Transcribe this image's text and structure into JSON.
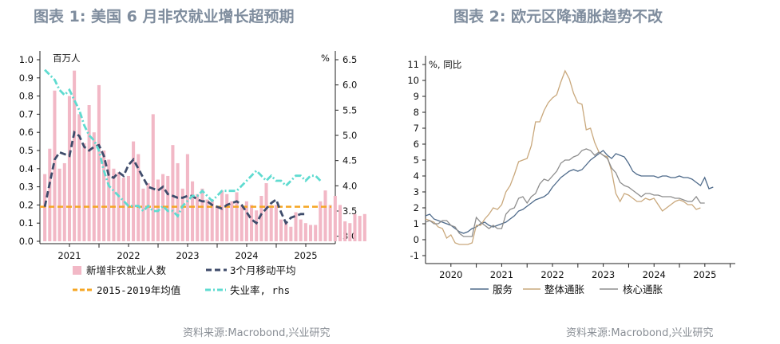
{
  "left_panel": {
    "title": "图表 1:  美国 6 月非农就业增长超预期",
    "source": "资料来源:Macrobond,兴业研究"
  },
  "right_panel": {
    "title": "图表 2:  欧元区降通胀趋势不改",
    "source": "资料来源:Macrobond,兴业研究"
  },
  "colors": {
    "title": "#7f8d9e",
    "bars": "#f2b8c6",
    "ma3": "#3f4c6b",
    "avg": "#f5a623",
    "unemp": "#5fdbd0",
    "services": "#4e6a8a",
    "headline": "#c9a87c",
    "core": "#8d8d8d"
  },
  "chart_data": [
    {
      "type": "bar",
      "left_unit": "百万人",
      "right_unit": "%",
      "ylim": [
        0,
        1.0
      ],
      "yticks": [
        "0.0",
        "0.1",
        "0.2",
        "0.3",
        "0.4",
        "0.5",
        "0.6",
        "0.7",
        "0.8",
        "0.9",
        "1.0"
      ],
      "y2lim": [
        2.9,
        6.5
      ],
      "y2ticks": [
        "3.0",
        "3.5",
        "4.0",
        "4.5",
        "5.0",
        "5.5",
        "6.0",
        "6.5"
      ],
      "x_range": [
        2020.5,
        2025.5
      ],
      "xticks": [
        "2021",
        "2022",
        "2023",
        "2024",
        "2025"
      ],
      "start": 2020.583,
      "step": 0.0833,
      "series": [
        {
          "name": "新增非农就业人数",
          "kind": "bar",
          "values": [
            0.37,
            0.51,
            0.83,
            0.4,
            0.43,
            0.8,
            0.94,
            0.7,
            0.54,
            0.75,
            0.6,
            0.86,
            0.5,
            0.45,
            0.4,
            0.38,
            0.35,
            0.36,
            0.55,
            0.48,
            0.29,
            0.32,
            0.7,
            0.34,
            0.37,
            0.36,
            0.53,
            0.43,
            0.29,
            0.48,
            0.33,
            0.26,
            0.29,
            0.23,
            0.23,
            0.19,
            0.28,
            0.26,
            0.22,
            0.27,
            0.2,
            0.22,
            0.2,
            0.17,
            0.25,
            0.32,
            0.2,
            0.2,
            0.12,
            0.11,
            0.08,
            0.16,
            0.12,
            0.1,
            0.09,
            0.09,
            0.22,
            0.28,
            0.2,
            0.25,
            0.2,
            0.11,
            0.1,
            0.15,
            0.14,
            0.15
          ]
        },
        {
          "name": "3个月移动平均",
          "kind": "line",
          "axis": "left",
          "values": [
            0.19,
            0.32,
            0.45,
            0.49,
            0.48,
            0.47,
            0.6,
            0.58,
            0.52,
            0.5,
            0.52,
            0.53,
            0.47,
            0.36,
            0.35,
            0.38,
            0.36,
            0.42,
            0.45,
            0.4,
            0.35,
            0.3,
            0.29,
            0.28,
            0.3,
            0.26,
            0.25,
            0.24,
            0.24,
            0.25,
            0.25,
            0.23,
            0.22,
            0.22,
            0.2,
            0.19,
            0.18,
            0.2,
            0.21,
            0.22,
            0.2,
            0.16,
            0.12,
            0.1,
            0.15,
            0.18,
            0.21,
            0.23,
            0.16,
            0.1,
            0.13,
            0.14,
            0.15,
            0.15
          ]
        },
        {
          "name": "2015-2019年均值",
          "kind": "hline",
          "axis": "left",
          "value": 0.19
        },
        {
          "name": "失业率, rhs",
          "kind": "line",
          "axis": "right",
          "values": [
            6.3,
            6.2,
            6.1,
            5.9,
            5.8,
            5.9,
            5.7,
            5.5,
            5.2,
            5.0,
            4.9,
            4.7,
            4.3,
            4.0,
            3.9,
            3.8,
            3.7,
            3.6,
            3.6,
            3.6,
            3.5,
            3.6,
            3.5,
            3.5,
            3.6,
            3.5,
            3.5,
            3.4,
            3.6,
            3.7,
            3.8,
            3.8,
            3.9,
            3.8,
            3.7,
            3.8,
            3.9,
            3.9,
            3.9,
            3.9,
            4.0,
            4.1,
            4.2,
            4.3,
            4.2,
            4.1,
            4.2,
            4.1,
            4.1,
            4.0,
            4.1,
            4.2,
            4.2,
            4.1,
            4.2,
            4.2,
            4.1
          ]
        }
      ],
      "legend": [
        "新增非农就业人数",
        "3个月移动平均",
        "2015-2019年均值",
        "失业率, rhs"
      ]
    },
    {
      "type": "line",
      "y_unit": "%, 同比",
      "ylim": [
        -1,
        11
      ],
      "yticks": [
        "-1",
        "0",
        "1",
        "2",
        "3",
        "4",
        "5",
        "6",
        "7",
        "8",
        "9",
        "10",
        "11"
      ],
      "x_range": [
        2019.5,
        2025.6
      ],
      "xticks": [
        "2020",
        "2021",
        "2022",
        "2023",
        "2024",
        "2025"
      ],
      "start": 2019.5,
      "step": 0.0833,
      "series": [
        {
          "name": "服务",
          "values": [
            1.5,
            1.6,
            1.3,
            1.2,
            1.1,
            1.0,
            0.9,
            0.7,
            0.5,
            0.4,
            0.5,
            0.7,
            0.8,
            1.0,
            1.1,
            0.9,
            0.8,
            0.9,
            1.0,
            1.1,
            1.3,
            1.5,
            1.8,
            1.9,
            2.1,
            2.3,
            2.5,
            2.6,
            2.7,
            2.9,
            3.3,
            3.6,
            3.9,
            4.1,
            4.3,
            4.4,
            4.3,
            4.4,
            4.7,
            5.0,
            5.2,
            5.4,
            5.6,
            5.3,
            5.1,
            5.4,
            5.3,
            5.2,
            4.8,
            4.3,
            4.1,
            4.0,
            4.0,
            4.0,
            4.0,
            3.9,
            4.0,
            4.0,
            3.9,
            3.9,
            4.0,
            3.9,
            3.9,
            3.8,
            3.6,
            3.4,
            3.9,
            3.2,
            3.3
          ]
        },
        {
          "name": "整体通胀",
          "values": [
            1.3,
            1.2,
            1.1,
            0.8,
            0.7,
            0.1,
            0.3,
            -0.2,
            -0.3,
            -0.3,
            -0.3,
            -0.2,
            0.9,
            0.9,
            1.3,
            1.6,
            2.0,
            1.9,
            2.2,
            3.0,
            3.4,
            4.1,
            4.9,
            5.0,
            5.1,
            5.9,
            7.4,
            7.4,
            8.1,
            8.6,
            8.9,
            9.1,
            9.9,
            10.6,
            10.1,
            9.2,
            8.6,
            8.5,
            6.9,
            7.0,
            6.1,
            5.5,
            5.3,
            5.2,
            4.3,
            2.9,
            2.4,
            2.9,
            2.8,
            2.6,
            2.4,
            2.4,
            2.6,
            2.5,
            2.6,
            2.2,
            1.8,
            2.0,
            2.2,
            2.4,
            2.5,
            2.4,
            2.2,
            2.2,
            1.9,
            2.0
          ]
        },
        {
          "name": "核心通胀",
          "values": [
            1.1,
            1.2,
            1.0,
            1.0,
            1.2,
            1.2,
            0.9,
            0.8,
            0.4,
            0.2,
            0.2,
            0.2,
            1.4,
            1.1,
            0.9,
            0.7,
            0.9,
            0.7,
            0.7,
            1.6,
            1.9,
            2.0,
            2.6,
            2.7,
            2.3,
            2.7,
            2.9,
            3.5,
            3.8,
            3.7,
            4.0,
            4.3,
            4.8,
            5.0,
            5.0,
            5.2,
            5.3,
            5.6,
            5.7,
            5.6,
            5.3,
            5.5,
            5.3,
            5.1,
            4.5,
            4.2,
            3.6,
            3.4,
            3.3,
            3.1,
            2.9,
            2.7,
            2.9,
            2.9,
            2.8,
            2.8,
            2.7,
            2.7,
            2.7,
            2.6,
            2.6,
            2.5,
            2.4,
            2.4,
            2.7,
            2.3,
            2.3
          ]
        }
      ],
      "legend": [
        "服务",
        "整体通胀",
        "核心通胀"
      ]
    }
  ]
}
